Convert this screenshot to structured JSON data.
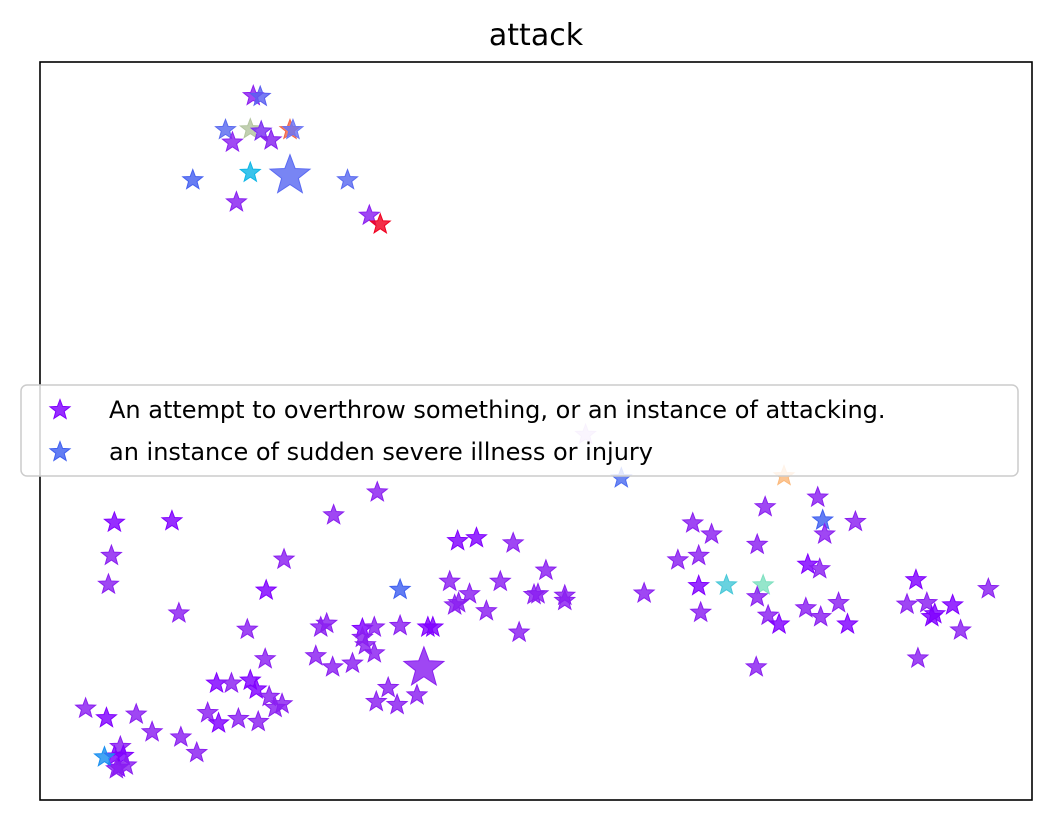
{
  "chart_data": {
    "type": "scatter",
    "title": "attack",
    "xlabel": "",
    "ylabel": "",
    "marker": "star",
    "grid": false,
    "ticks": false,
    "xlim": [
      0,
      100
    ],
    "ylim": [
      0,
      100
    ],
    "legend": {
      "placement": "center",
      "entries": [
        {
          "label": "An attempt to overthrow something, or an instance of attacking.",
          "color": "#8000ff"
        },
        {
          "label": "an instance of sudden severe illness or injury",
          "color": "#4060f0"
        }
      ]
    },
    "points": [
      [
        21.5,
        95.4,
        "#8d1ff0",
        1
      ],
      [
        22.2,
        95.3,
        "#5a5ff0",
        1
      ],
      [
        18.7,
        90.8,
        "#5a6aef",
        1
      ],
      [
        21.2,
        90.9,
        "#b3c5a0",
        1
      ],
      [
        22.3,
        90.6,
        "#7a2cf2",
        1
      ],
      [
        25.2,
        90.8,
        "#f06548",
        1
      ],
      [
        25.5,
        90.8,
        "#6a74f6",
        1
      ],
      [
        19.4,
        89.1,
        "#8c23f0",
        1
      ],
      [
        23.3,
        89.4,
        "#8520ef",
        1
      ],
      [
        15.4,
        84.0,
        "#4560f0",
        1
      ],
      [
        21.2,
        85.0,
        "#0fb6e6",
        1
      ],
      [
        25.2,
        84.6,
        "#5a6af2",
        3
      ],
      [
        31.0,
        84.0,
        "#5a6af0",
        1
      ],
      [
        19.8,
        81.0,
        "#8720f0",
        1
      ],
      [
        33.2,
        79.2,
        "#8a1ff0",
        1
      ],
      [
        34.3,
        78.0,
        "#f00020",
        1
      ],
      [
        55.0,
        49.5,
        "#d9b8f5",
        1
      ],
      [
        58.6,
        43.6,
        "#4c6cf0",
        1
      ],
      [
        75.0,
        43.9,
        "#fbb87a",
        1
      ],
      [
        7.5,
        37.6,
        "#8000ff",
        1
      ],
      [
        13.3,
        37.8,
        "#8000ff",
        1
      ],
      [
        7.2,
        33.1,
        "#8a1ff0",
        1
      ],
      [
        6.9,
        29.2,
        "#8a1ff0",
        1
      ],
      [
        14.0,
        25.3,
        "#8a1ff0",
        1
      ],
      [
        29.6,
        38.6,
        "#8a1ff0",
        1
      ],
      [
        34.0,
        41.7,
        "#8a1ff0",
        1
      ],
      [
        24.6,
        32.6,
        "#8a1ff0",
        1
      ],
      [
        22.8,
        28.4,
        "#8000ff",
        1
      ],
      [
        36.3,
        28.5,
        "#4060f0",
        1
      ],
      [
        20.9,
        23.1,
        "#8a1ff0",
        1
      ],
      [
        28.3,
        23.4,
        "#8a1ff0",
        1
      ],
      [
        28.9,
        23.9,
        "#8a1ff0",
        1
      ],
      [
        32.5,
        23.2,
        "#8000ff",
        1
      ],
      [
        33.7,
        23.4,
        "#8a1ff0",
        1
      ],
      [
        36.3,
        23.6,
        "#8a1ff0",
        1
      ],
      [
        39.6,
        23.4,
        "#8000ff",
        1
      ],
      [
        32.5,
        22.0,
        "#8a1ff0",
        1
      ],
      [
        32.8,
        21.0,
        "#8a1ff0",
        1
      ],
      [
        33.7,
        19.9,
        "#8a1ff0",
        1
      ],
      [
        27.8,
        19.5,
        "#8a1ff0",
        1
      ],
      [
        29.5,
        18.0,
        "#8a1ff0",
        1
      ],
      [
        31.5,
        18.5,
        "#8a1ff0",
        1
      ],
      [
        38.7,
        17.9,
        "#8a1ff0",
        3
      ],
      [
        22.7,
        19.1,
        "#8a1ff0",
        1
      ],
      [
        17.8,
        15.8,
        "#8000ff",
        1
      ],
      [
        19.3,
        15.8,
        "#8a1ff0",
        1
      ],
      [
        21.2,
        16.2,
        "#8000ff",
        1
      ],
      [
        21.8,
        15.0,
        "#8000ff",
        1
      ],
      [
        23.1,
        14.0,
        "#8a1ff0",
        1
      ],
      [
        24.4,
        13.0,
        "#8a1ff0",
        1
      ],
      [
        23.7,
        12.5,
        "#8a1ff0",
        1
      ],
      [
        35.1,
        15.2,
        "#8a1ff0",
        1
      ],
      [
        33.9,
        13.3,
        "#8a1ff0",
        1
      ],
      [
        36.0,
        12.9,
        "#8a1ff0",
        1
      ],
      [
        38.0,
        14.2,
        "#8a1ff0",
        1
      ],
      [
        16.9,
        11.8,
        "#8a1ff0",
        1
      ],
      [
        18.0,
        10.4,
        "#8000ff",
        1
      ],
      [
        20.0,
        11.0,
        "#8a1ff0",
        1
      ],
      [
        22.0,
        10.6,
        "#8a1ff0",
        1
      ],
      [
        4.6,
        12.4,
        "#8a1ff0",
        1
      ],
      [
        6.7,
        11.1,
        "#8000ff",
        1
      ],
      [
        9.7,
        11.6,
        "#8a1ff0",
        1
      ],
      [
        11.3,
        9.2,
        "#8a1ff0",
        1
      ],
      [
        14.2,
        8.5,
        "#8a1ff0",
        1
      ],
      [
        15.8,
        6.4,
        "#8a1ff0",
        1
      ],
      [
        8.1,
        7.2,
        "#8a1ff0",
        1
      ],
      [
        7.5,
        5.9,
        "#8000ff",
        1
      ],
      [
        8.4,
        6.0,
        "#8000ff",
        1
      ],
      [
        7.9,
        4.4,
        "#8000ff",
        1
      ],
      [
        8.7,
        4.7,
        "#8a1ff0",
        1
      ],
      [
        6.5,
        5.8,
        "#1a90f0",
        1
      ],
      [
        7.7,
        4.2,
        "#8a1ff0",
        1
      ],
      [
        42.1,
        35.1,
        "#8000ff",
        1
      ],
      [
        44.0,
        35.5,
        "#8000ff",
        1
      ],
      [
        47.7,
        34.8,
        "#8a1ff0",
        1
      ],
      [
        51.0,
        31.1,
        "#8a1ff0",
        1
      ],
      [
        41.3,
        29.6,
        "#8a1ff0",
        1
      ],
      [
        46.4,
        29.6,
        "#8a1ff0",
        1
      ],
      [
        43.3,
        27.9,
        "#8a1ff0",
        1
      ],
      [
        42.2,
        26.7,
        "#8a1ff0",
        1
      ],
      [
        41.8,
        26.4,
        "#8a1ff0",
        1
      ],
      [
        50.2,
        27.9,
        "#8a1ff0",
        1
      ],
      [
        49.8,
        27.8,
        "#8a1ff0",
        1
      ],
      [
        52.9,
        27.7,
        "#8a1ff0",
        1
      ],
      [
        52.9,
        27.0,
        "#8a1ff0",
        1
      ],
      [
        45.0,
        25.6,
        "#8a1ff0",
        1
      ],
      [
        48.3,
        22.7,
        "#8a1ff0",
        1
      ],
      [
        39.1,
        23.4,
        "#8000ff",
        1
      ],
      [
        60.9,
        28.0,
        "#8a1ff0",
        1
      ],
      [
        65.8,
        37.5,
        "#8a1ff0",
        1
      ],
      [
        67.7,
        36.0,
        "#8a1ff0",
        1
      ],
      [
        72.3,
        34.6,
        "#8a1ff0",
        1
      ],
      [
        73.1,
        39.7,
        "#8a1ff0",
        1
      ],
      [
        78.4,
        41.0,
        "#8a1ff0",
        1
      ],
      [
        78.9,
        37.9,
        "#4060f0",
        1
      ],
      [
        82.2,
        37.7,
        "#8a1ff0",
        1
      ],
      [
        79.1,
        36.0,
        "#8a1ff0",
        1
      ],
      [
        64.3,
        32.5,
        "#8a1ff0",
        1
      ],
      [
        66.4,
        33.1,
        "#8a1ff0",
        1
      ],
      [
        66.4,
        29.0,
        "#8000ff",
        1
      ],
      [
        69.2,
        29.1,
        "#48c8d8",
        1
      ],
      [
        72.9,
        29.1,
        "#7ee0c0",
        1
      ],
      [
        77.4,
        31.9,
        "#8000ff",
        1
      ],
      [
        78.6,
        31.3,
        "#8a1ff0",
        1
      ],
      [
        66.6,
        25.4,
        "#8a1ff0",
        1
      ],
      [
        72.3,
        27.5,
        "#8a1ff0",
        1
      ],
      [
        73.4,
        25.0,
        "#8a1ff0",
        1
      ],
      [
        74.5,
        23.8,
        "#8000ff",
        1
      ],
      [
        77.2,
        26.0,
        "#8a1ff0",
        1
      ],
      [
        78.7,
        24.8,
        "#8a1ff0",
        1
      ],
      [
        80.5,
        26.7,
        "#8a1ff0",
        1
      ],
      [
        81.4,
        23.8,
        "#8000ff",
        1
      ],
      [
        72.2,
        18.0,
        "#8a1ff0",
        1
      ],
      [
        88.3,
        29.8,
        "#8000ff",
        1
      ],
      [
        87.4,
        26.5,
        "#8a1ff0",
        1
      ],
      [
        89.4,
        26.7,
        "#8a1ff0",
        1
      ],
      [
        90.2,
        25.2,
        "#8000ff",
        1
      ],
      [
        89.9,
        24.8,
        "#8000ff",
        1
      ],
      [
        92.0,
        26.4,
        "#8000ff",
        1
      ],
      [
        95.6,
        28.6,
        "#8a1ff0",
        1
      ],
      [
        92.8,
        23.0,
        "#8a1ff0",
        1
      ],
      [
        88.5,
        19.2,
        "#8a1ff0",
        1
      ]
    ]
  }
}
